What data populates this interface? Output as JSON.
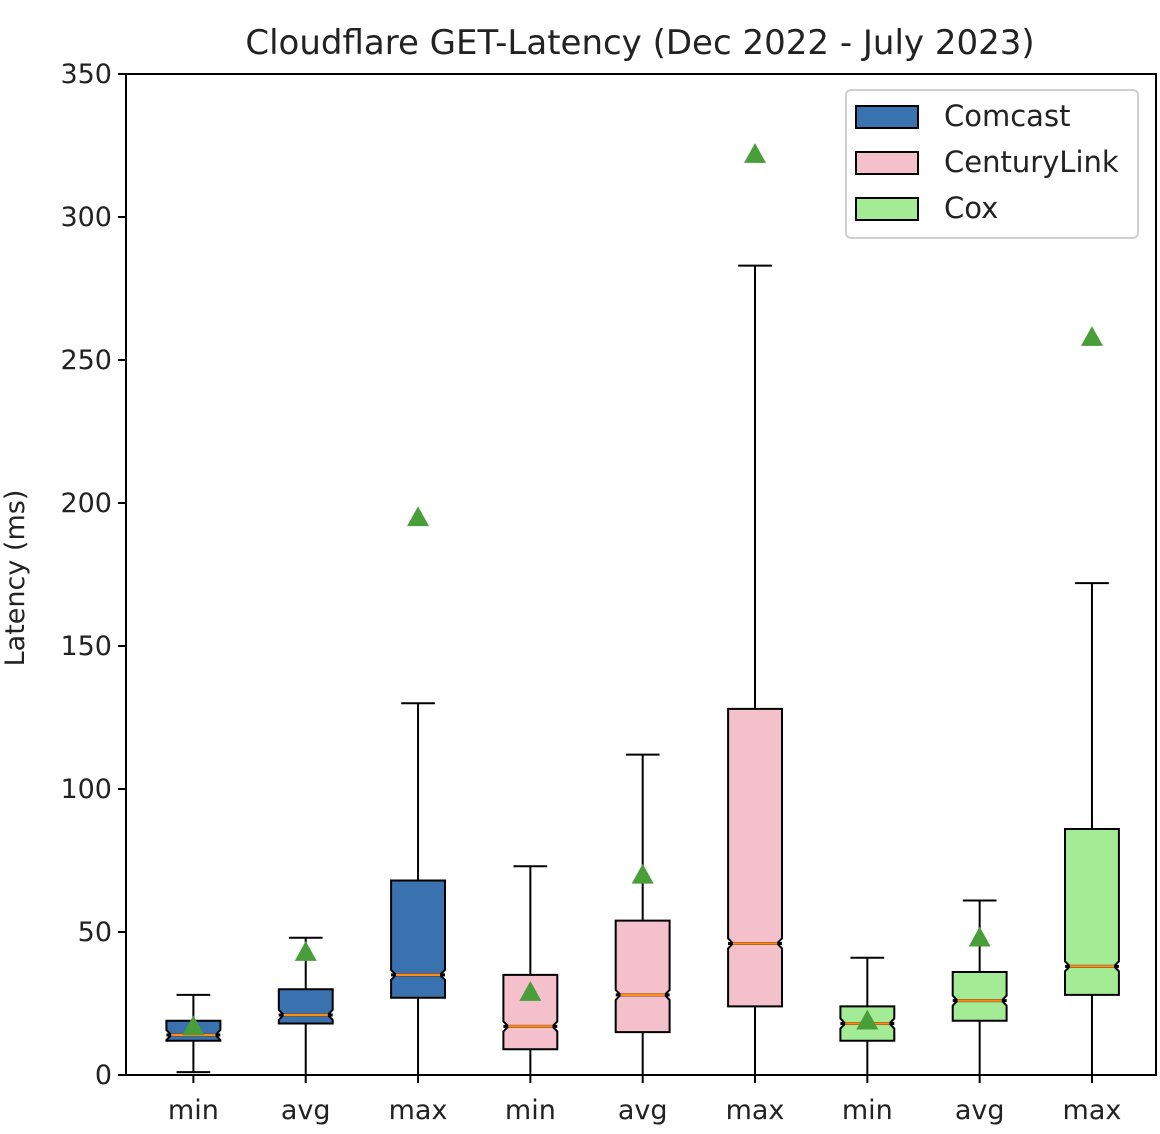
{
  "chart_data": {
    "type": "box",
    "title": "Cloudflare GET-Latency (Dec 2022 - July 2023)",
    "ylabel": "Latency (ms)",
    "xlabel": "",
    "ylim": [
      0,
      350
    ],
    "yticks": [
      0,
      50,
      100,
      150,
      200,
      250,
      300,
      350
    ],
    "grid": false,
    "notched": true,
    "legend_position": "top-right",
    "legend": [
      {
        "name": "Comcast",
        "color": "#3a72b0"
      },
      {
        "name": "CenturyLink",
        "color": "#f4c0cb"
      },
      {
        "name": "Cox",
        "color": "#a3eb95"
      }
    ],
    "median_color": "#ff8c1a",
    "mean_marker_color": "#4a9e3a",
    "categories": [
      "min",
      "avg",
      "max",
      "min",
      "avg",
      "max",
      "min",
      "avg",
      "max"
    ],
    "boxes": [
      {
        "label": "min",
        "group": "Comcast",
        "whisker_low": 1,
        "q1": 12,
        "median": 14,
        "q3": 19,
        "whisker_high": 28,
        "mean": 17
      },
      {
        "label": "avg",
        "group": "Comcast",
        "whisker_low": 0,
        "q1": 18,
        "median": 21,
        "q3": 30,
        "whisker_high": 48,
        "mean": 43
      },
      {
        "label": "max",
        "group": "Comcast",
        "whisker_low": 0,
        "q1": 27,
        "median": 35,
        "q3": 68,
        "whisker_high": 130,
        "mean": 195
      },
      {
        "label": "min",
        "group": "CenturyLink",
        "whisker_low": 0,
        "q1": 9,
        "median": 17,
        "q3": 35,
        "whisker_high": 73,
        "mean": 29
      },
      {
        "label": "avg",
        "group": "CenturyLink",
        "whisker_low": 0,
        "q1": 15,
        "median": 28,
        "q3": 54,
        "whisker_high": 112,
        "mean": 70
      },
      {
        "label": "max",
        "group": "CenturyLink",
        "whisker_low": 0,
        "q1": 24,
        "median": 46,
        "q3": 128,
        "whisker_high": 283,
        "mean": 322
      },
      {
        "label": "min",
        "group": "Cox",
        "whisker_low": 0,
        "q1": 12,
        "median": 18,
        "q3": 24,
        "whisker_high": 41,
        "mean": 19
      },
      {
        "label": "avg",
        "group": "Cox",
        "whisker_low": 0,
        "q1": 19,
        "median": 26,
        "q3": 36,
        "whisker_high": 61,
        "mean": 48
      },
      {
        "label": "max",
        "group": "Cox",
        "whisker_low": 0,
        "q1": 28,
        "median": 38,
        "q3": 86,
        "whisker_high": 172,
        "mean": 258
      }
    ]
  }
}
